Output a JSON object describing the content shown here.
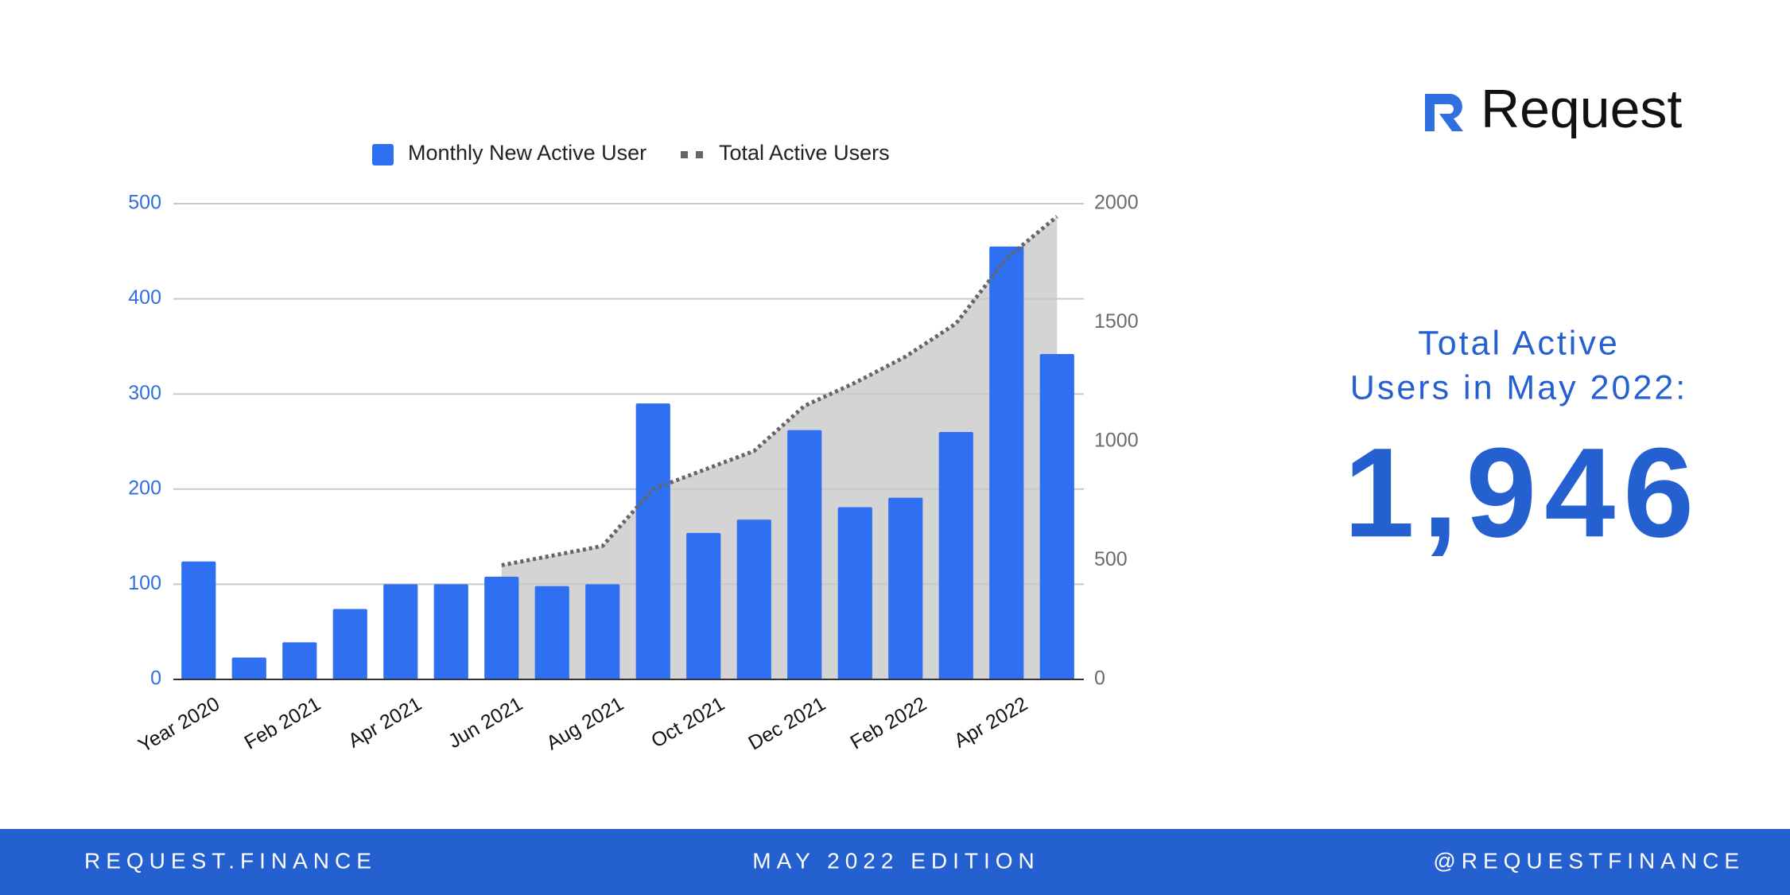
{
  "logo": "Request",
  "headline": {
    "lines": [
      "Total Active",
      "Users in May 2022:"
    ],
    "number": "1,946"
  },
  "footer": {
    "left": "REQUEST.FINANCE",
    "center": "MAY 2022 EDITION",
    "right": "@REQUESTFINANCE"
  },
  "chart_data": {
    "type": "bar",
    "categories": [
      "Year 2020",
      null,
      "Feb 2021",
      null,
      "Apr 2021",
      null,
      "Jun 2021",
      null,
      "Aug 2021",
      null,
      "Oct 2021",
      null,
      "Dec 2021",
      null,
      "Feb 2022",
      null,
      "Apr 2022",
      null
    ],
    "series": [
      {
        "name": "Monthly New Active User",
        "color": "#2f6ff2",
        "type": "bar",
        "values": [
          124,
          23,
          39,
          74,
          100,
          100,
          108,
          98,
          100,
          290,
          154,
          168,
          262,
          181,
          191,
          260,
          455,
          342
        ]
      },
      {
        "name": "Total Active Users",
        "color": "#666666",
        "area_color": "#d4d4d4",
        "type": "line",
        "axis": "y2",
        "values": [
          null,
          null,
          null,
          null,
          null,
          null,
          480,
          520,
          561,
          800,
          880,
          960,
          1150,
          1247,
          1357,
          1496,
          1770,
          1946
        ]
      }
    ],
    "ylim": [
      0,
      500
    ],
    "yticks": [
      0,
      100,
      200,
      300,
      400,
      500
    ],
    "y2lim": [
      0,
      2000
    ],
    "y2ticks": [
      0,
      500,
      1000,
      1500,
      2000
    ],
    "grid": true,
    "legend": "top"
  }
}
